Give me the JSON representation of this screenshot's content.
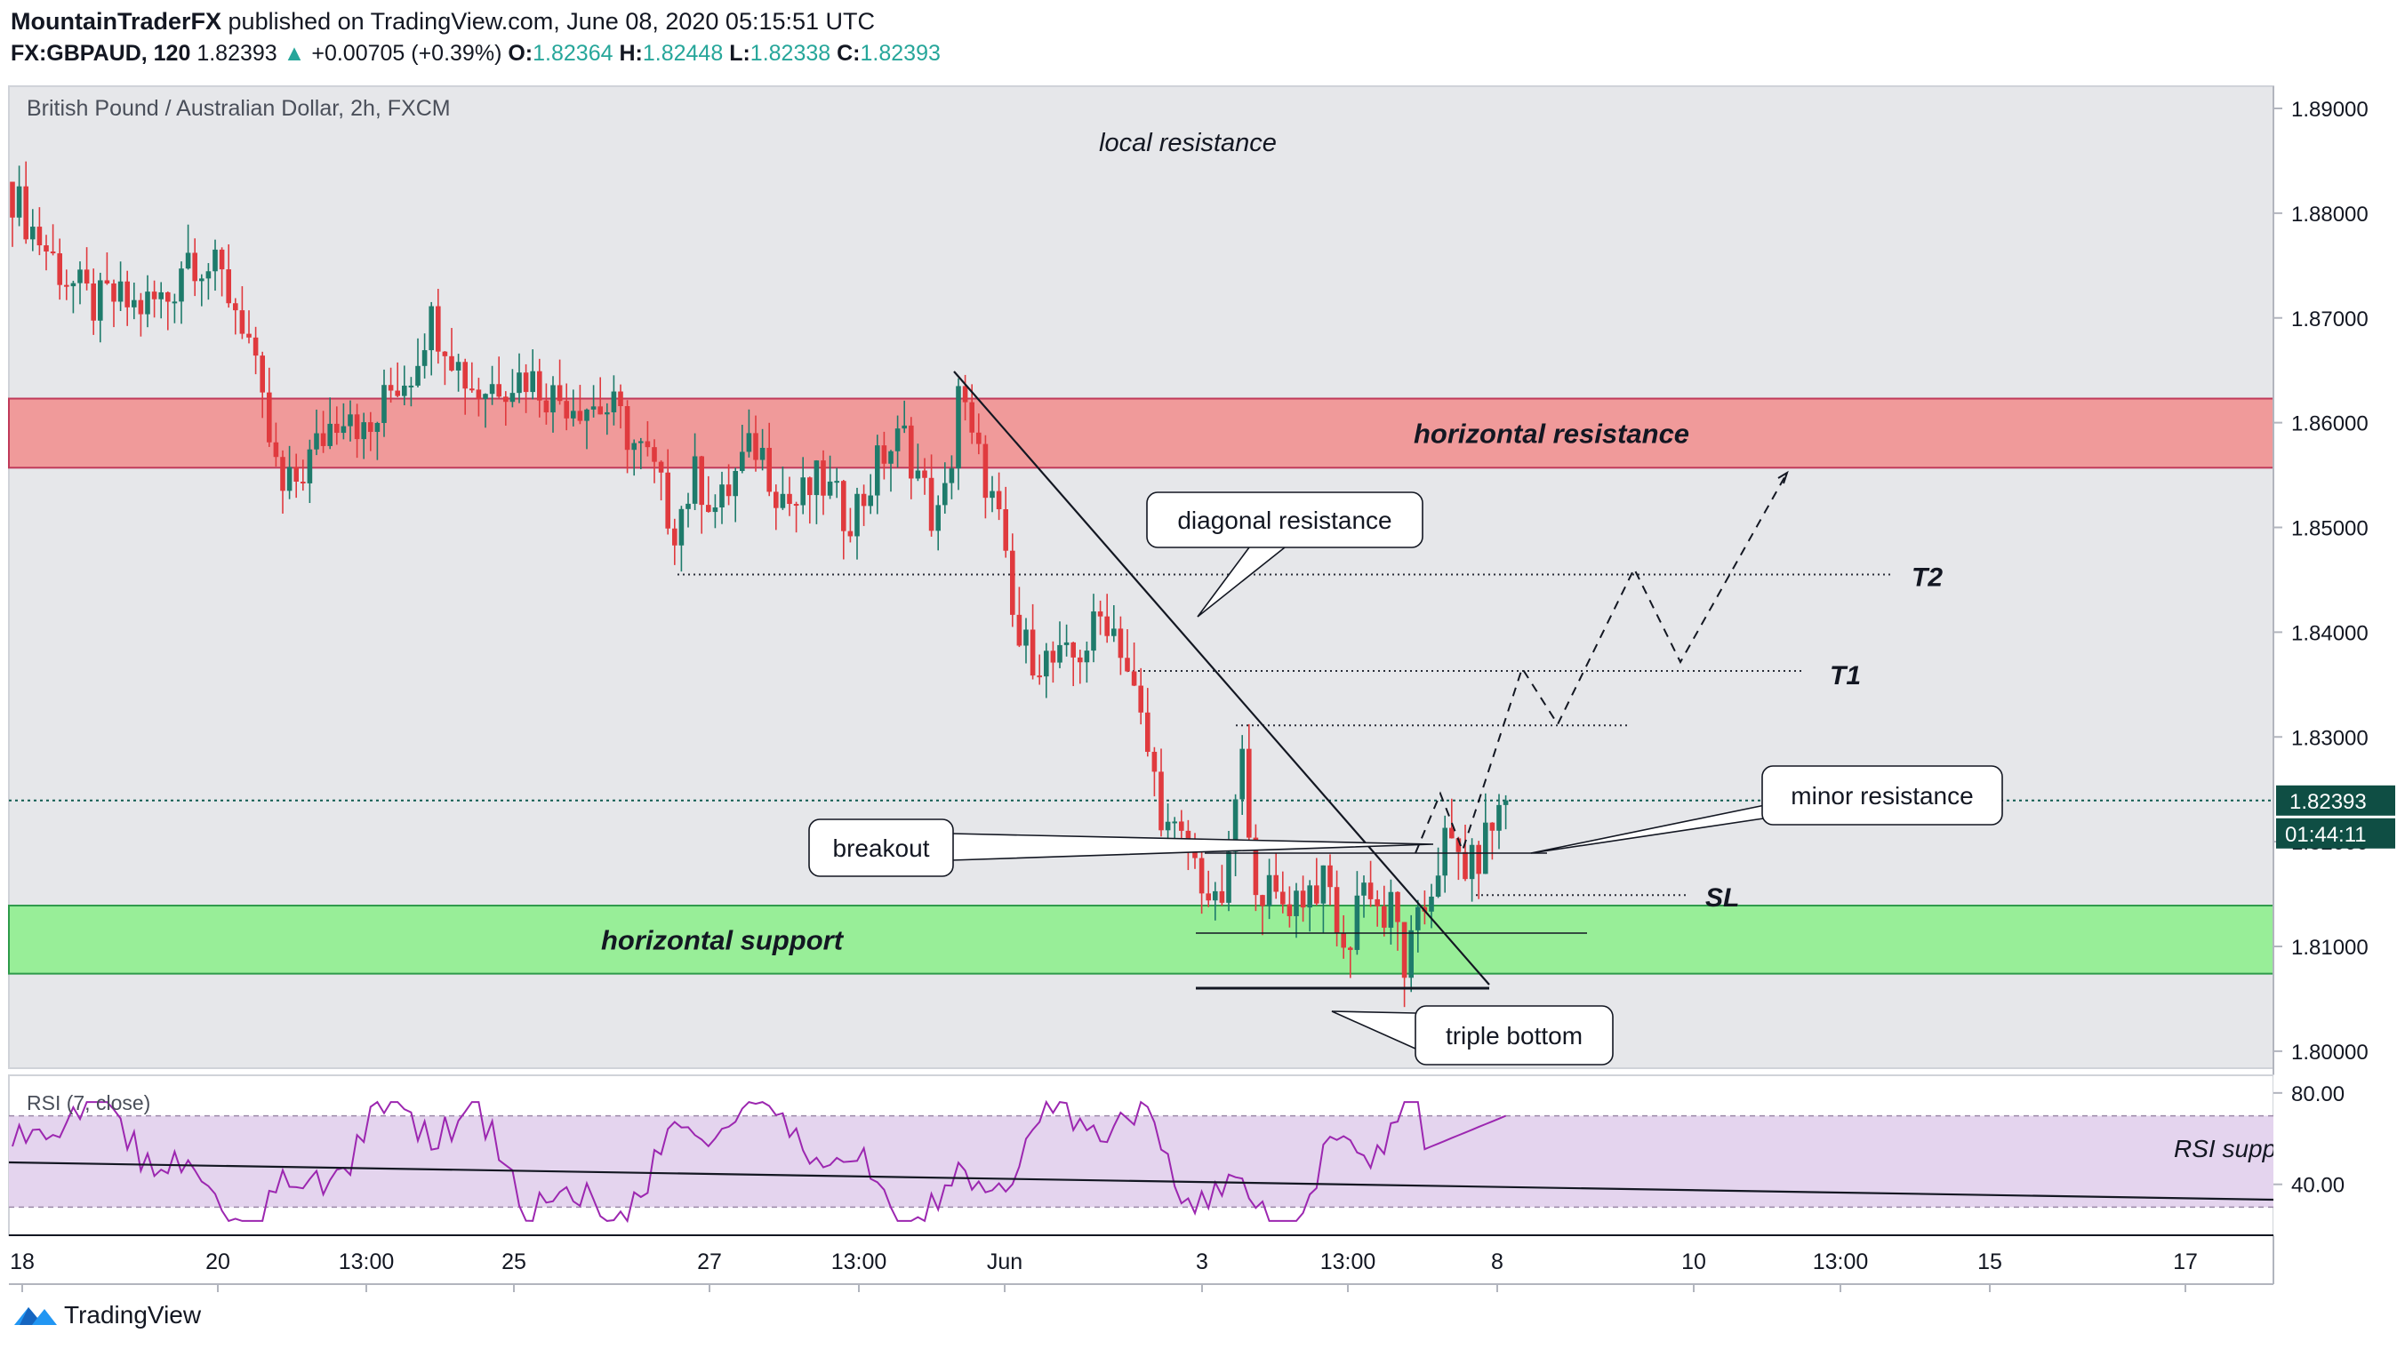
{
  "header": {
    "author": "MountainTraderFX",
    "published_text": "published on TradingView.com, June 08, 2020 05:15:51 UTC",
    "symbol": "FX:GBPAUD, 120",
    "last": "1.82393",
    "change": "+0.00705 (+0.39%)",
    "open_label": "O:",
    "open": "1.82364",
    "high_label": "H:",
    "high": "1.82448",
    "low_label": "L:",
    "low": "1.82338",
    "close_label": "C:",
    "close": "1.82393"
  },
  "chart_data": {
    "type": "candlestick",
    "title": "British Pound / Australian Dollar, 2h, FXCM",
    "ylim": [
      1.795,
      1.8915
    ],
    "y_ticks": [
      "1.89000",
      "1.88000",
      "1.87000",
      "1.86000",
      "1.85000",
      "1.84000",
      "1.83000",
      "1.82000",
      "1.81000",
      "1.80000"
    ],
    "x_ticks": [
      "18",
      "20",
      "13:00",
      "25",
      "27",
      "13:00",
      "Jun",
      "3",
      "13:00",
      "8",
      "10",
      "13:00",
      "15",
      "17"
    ],
    "price_label": "1.82393",
    "countdown_label": "01:44:11",
    "zones": [
      {
        "label": "horizontal resistance",
        "from": 1.8557,
        "to": 1.8623,
        "color": "#f09a9a"
      },
      {
        "label": "horizontal support",
        "from": 1.8074,
        "to": 1.8139,
        "color": "#98ee98"
      }
    ],
    "annotations": [
      "local resistance",
      "diagonal resistance",
      "breakout",
      "minor resistance",
      "triple bottom",
      "T2",
      "T1",
      "SL"
    ],
    "levels": {
      "T2": 1.8455,
      "T1": 1.8363,
      "SL": 1.8149
    },
    "rsi": {
      "label": "RSI (7, close)",
      "ticks": [
        "80.00",
        "40.00"
      ],
      "band": [
        30,
        70
      ],
      "ylim": [
        15,
        85
      ],
      "annotation": "RSI support"
    },
    "colors": {
      "up": "#1e7b6b",
      "down": "#e03a3e",
      "background": "#e6e7ea",
      "rsi": "#9c27b0"
    }
  },
  "footer": {
    "brand": "TradingView"
  }
}
